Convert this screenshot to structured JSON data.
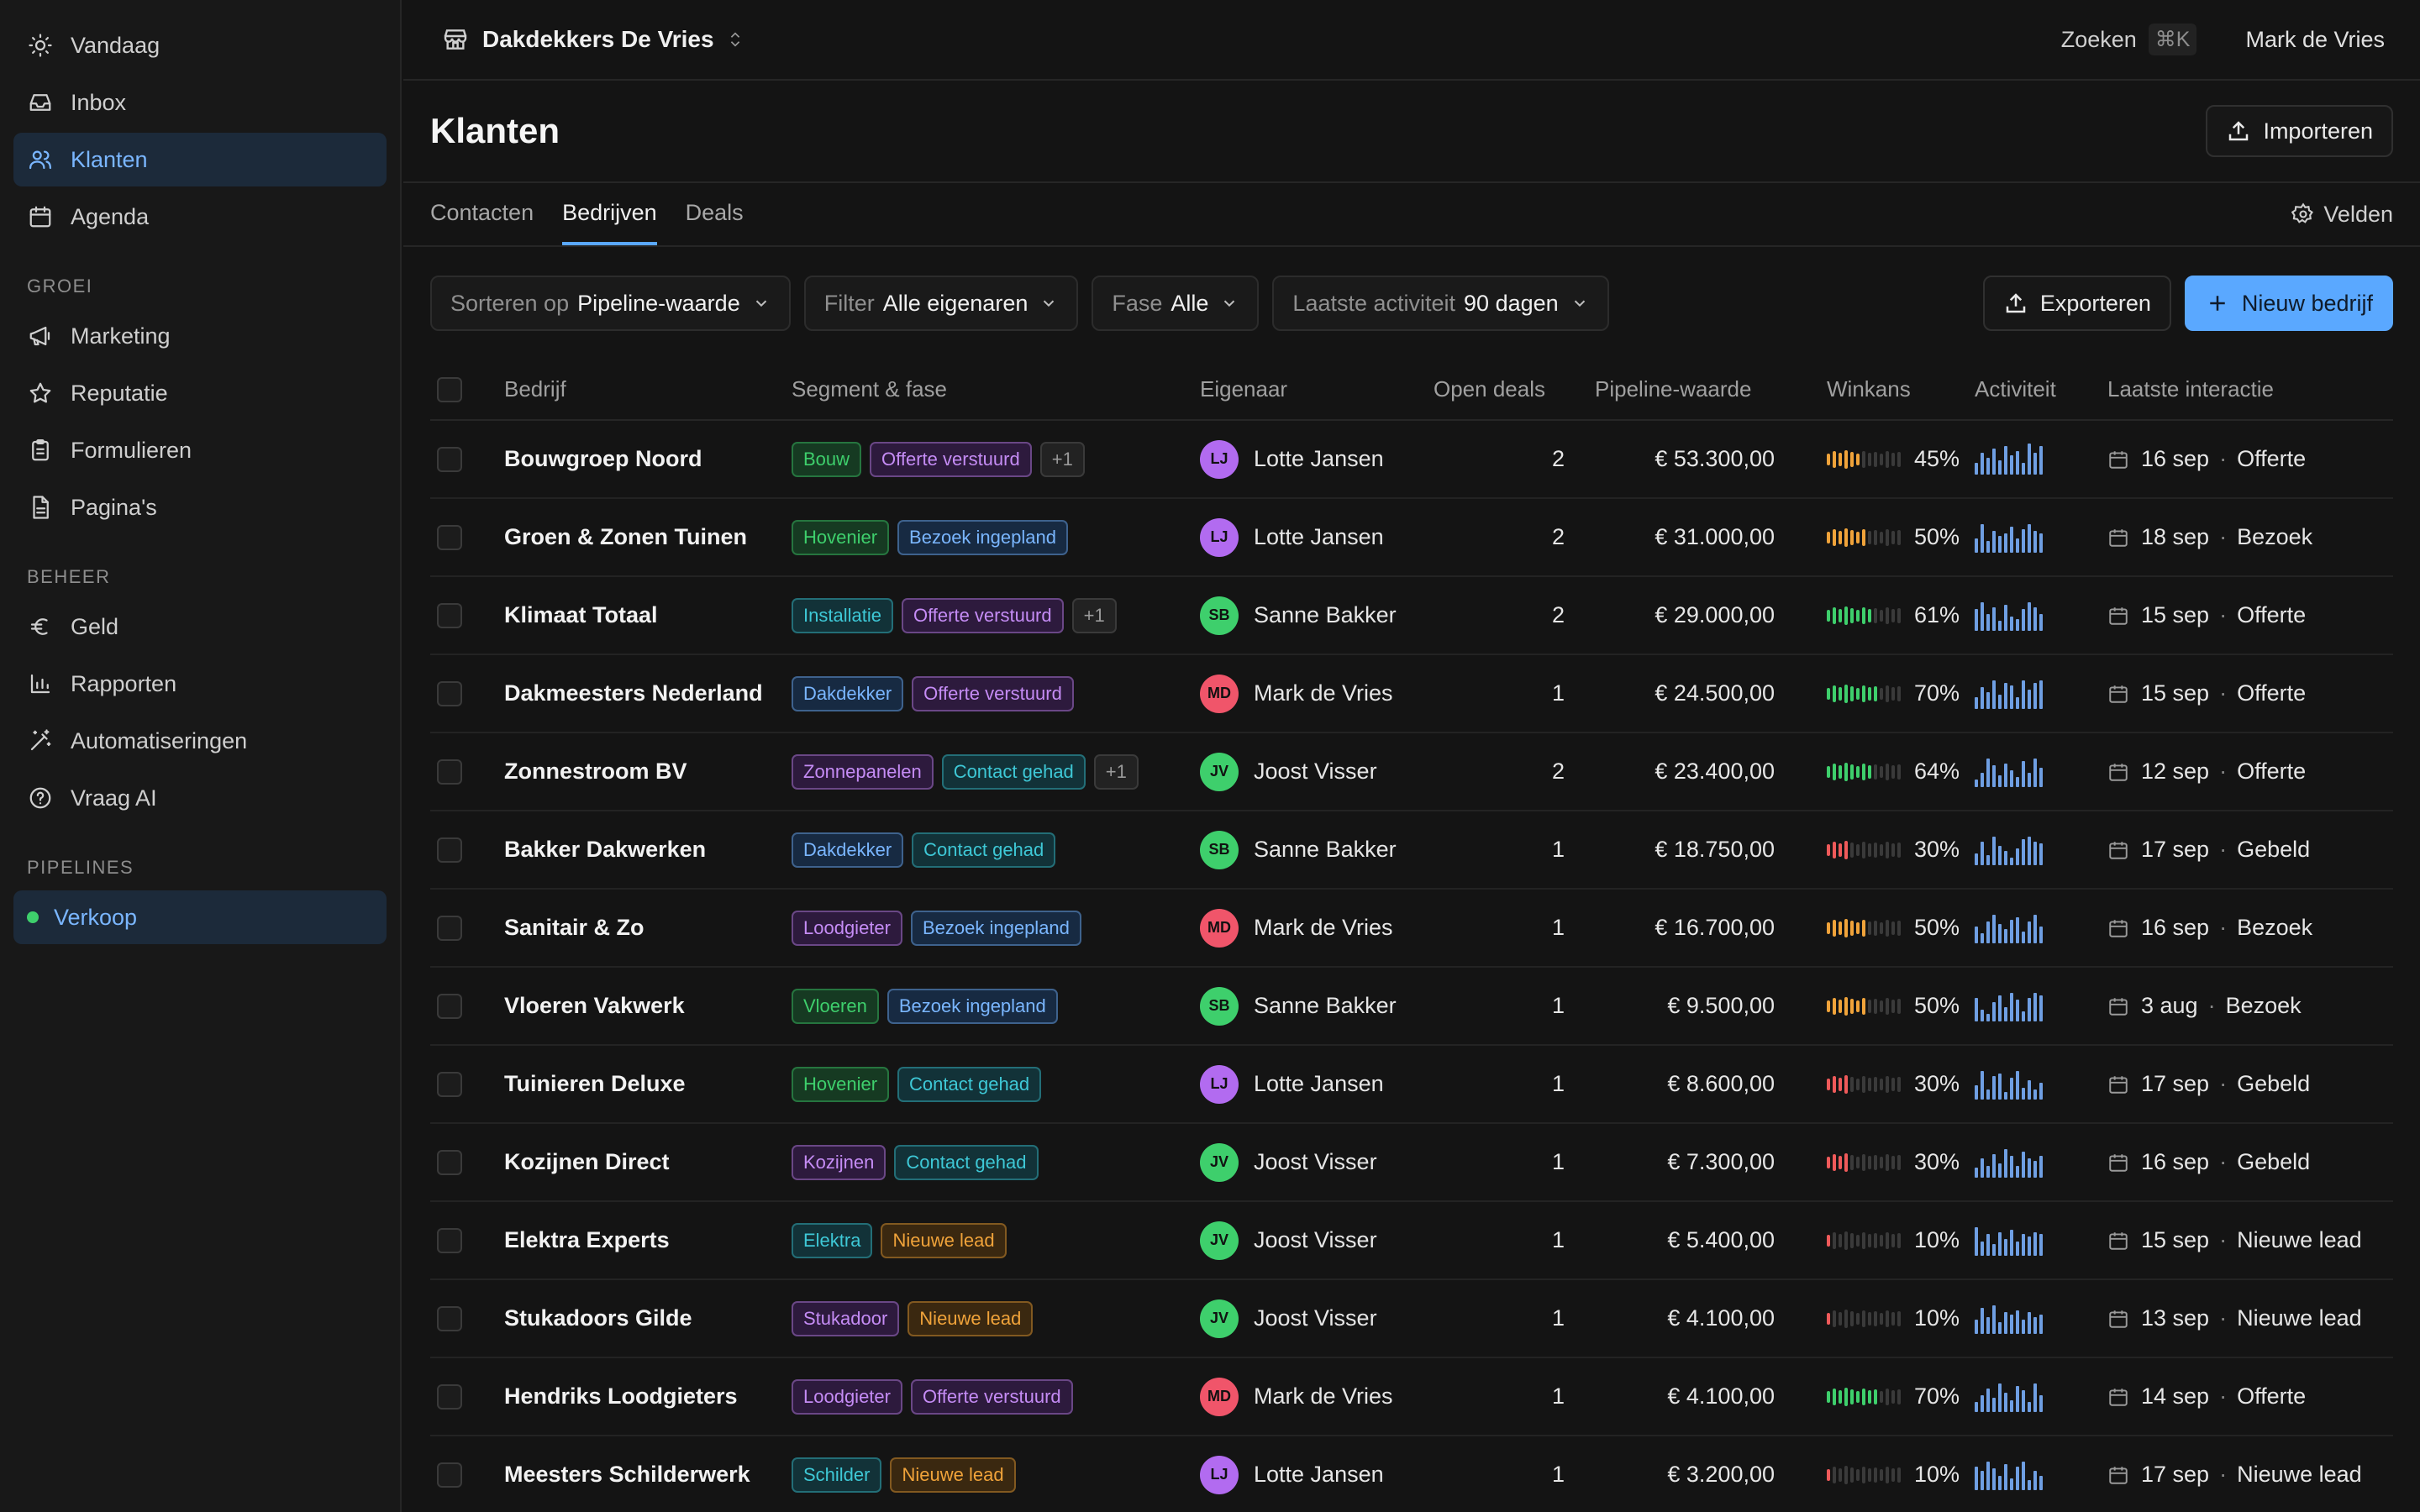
{
  "sidebar": {
    "top_items": [
      {
        "label": "Vandaag",
        "icon": "sun-icon"
      },
      {
        "label": "Inbox",
        "icon": "inbox-icon"
      },
      {
        "label": "Klanten",
        "icon": "users-icon",
        "active": true
      },
      {
        "label": "Agenda",
        "icon": "calendar-icon"
      }
    ],
    "groei_label": "GROEI",
    "groei_items": [
      {
        "label": "Marketing",
        "icon": "megaphone-icon"
      },
      {
        "label": "Reputatie",
        "icon": "star-icon"
      },
      {
        "label": "Formulieren",
        "icon": "clipboard-icon"
      },
      {
        "label": "Pagina's",
        "icon": "file-icon"
      }
    ],
    "beheer_label": "BEHEER",
    "beheer_items": [
      {
        "label": "Geld",
        "icon": "euro-icon"
      },
      {
        "label": "Rapporten",
        "icon": "bar-chart-icon"
      },
      {
        "label": "Automatiseringen",
        "icon": "magic-wand-icon"
      },
      {
        "label": "Vraag AI",
        "icon": "help-circle-icon"
      }
    ],
    "pipelines_label": "PIPELINES",
    "pipelines_items": [
      {
        "label": "Verkoop",
        "icon": "status-dot-icon",
        "active": true
      }
    ]
  },
  "topbar": {
    "workspace": "Dakdekkers De Vries",
    "search_label": "Zoeken",
    "search_shortcut": "⌘K",
    "user_name": "Mark de Vries"
  },
  "header": {
    "title": "Klanten",
    "import_label": "Importeren"
  },
  "tabs": {
    "items": [
      "Contacten",
      "Bedrijven",
      "Deals"
    ],
    "active": "Bedrijven",
    "fields_label": "Velden"
  },
  "toolbar": {
    "sort_label": "Sorteren op",
    "sort_value": "Pipeline-waarde",
    "filter_label": "Filter",
    "filter_value": "Alle eigenaren",
    "phase_label": "Fase",
    "phase_value": "Alle",
    "activity_label": "Laatste activiteit",
    "activity_value": "90 dagen",
    "export_label": "Exporteren",
    "new_label": "Nieuw bedrijf"
  },
  "table": {
    "columns": [
      "Bedrijf",
      "Segment & fase",
      "Eigenaar",
      "Open deals",
      "Pipeline-waarde",
      "Winkans",
      "Activiteit",
      "Laatste interactie"
    ],
    "rows": [
      {
        "company": "Bouwgroep Noord",
        "segment": "Bouw",
        "phase": "Offerte verstuurd",
        "extra": "+1",
        "owner": "Lotte Jansen",
        "initials": "LJ",
        "deals": "2",
        "value": "€ 53.300,00",
        "winkans": 45,
        "winkans_label": "45%",
        "activity": [
          5,
          9,
          7,
          11,
          6,
          12,
          8,
          10,
          5,
          13,
          9,
          12
        ],
        "date": "16 sep",
        "interaction": "Offerte"
      },
      {
        "company": "Groen & Zonen Tuinen",
        "segment": "Hovenier",
        "phase": "Bezoek ingepland",
        "extra": "",
        "owner": "Lotte Jansen",
        "initials": "LJ",
        "deals": "2",
        "value": "€ 31.000,00",
        "winkans": 50,
        "winkans_label": "50%",
        "activity": [
          6,
          12,
          5,
          9,
          7,
          8,
          11,
          6,
          10,
          12,
          9,
          8
        ],
        "date": "18 sep",
        "interaction": "Bezoek"
      },
      {
        "company": "Klimaat Totaal",
        "segment": "Installatie",
        "phase": "Offerte verstuurd",
        "extra": "+1",
        "owner": "Sanne Bakker",
        "initials": "SB",
        "deals": "2",
        "value": "€ 29.000,00",
        "winkans": 61,
        "winkans_label": "61%",
        "activity": [
          9,
          12,
          7,
          10,
          4,
          11,
          6,
          5,
          9,
          12,
          10,
          7
        ],
        "date": "15 sep",
        "interaction": "Offerte"
      },
      {
        "company": "Dakmeesters Nederland",
        "segment": "Dakdekker",
        "phase": "Offerte verstuurd",
        "extra": "",
        "owner": "Mark de Vries",
        "initials": "MD",
        "deals": "1",
        "value": "€ 24.500,00",
        "winkans": 70,
        "winkans_label": "70%",
        "activity": [
          5,
          9,
          7,
          12,
          6,
          11,
          10,
          5,
          12,
          8,
          11,
          12
        ],
        "date": "15 sep",
        "interaction": "Offerte"
      },
      {
        "company": "Zonnestroom BV",
        "segment": "Zonnepanelen",
        "phase": "Contact gehad",
        "extra": "+1",
        "owner": "Joost Visser",
        "initials": "JV",
        "deals": "2",
        "value": "€ 23.400,00",
        "winkans": 64,
        "winkans_label": "64%",
        "activity": [
          3,
          6,
          12,
          9,
          5,
          10,
          7,
          4,
          11,
          6,
          12,
          8
        ],
        "date": "12 sep",
        "interaction": "Offerte"
      },
      {
        "company": "Bakker Dakwerken",
        "segment": "Dakdekker",
        "phase": "Contact gehad",
        "extra": "",
        "owner": "Sanne Bakker",
        "initials": "SB",
        "deals": "1",
        "value": "€ 18.750,00",
        "winkans": 30,
        "winkans_label": "30%",
        "activity": [
          5,
          10,
          4,
          12,
          8,
          6,
          3,
          7,
          11,
          12,
          10,
          9
        ],
        "date": "17 sep",
        "interaction": "Gebeld"
      },
      {
        "company": "Sanitair & Zo",
        "segment": "Loodgieter",
        "phase": "Bezoek ingepland",
        "extra": "",
        "owner": "Mark de Vries",
        "initials": "MD",
        "deals": "1",
        "value": "€ 16.700,00",
        "winkans": 50,
        "winkans_label": "50%",
        "activity": [
          7,
          4,
          9,
          12,
          8,
          6,
          10,
          11,
          5,
          9,
          12,
          7
        ],
        "date": "16 sep",
        "interaction": "Bezoek"
      },
      {
        "company": "Vloeren Vakwerk",
        "segment": "Vloeren",
        "phase": "Bezoek ingepland",
        "extra": "",
        "owner": "Sanne Bakker",
        "initials": "SB",
        "deals": "1",
        "value": "€ 9.500,00",
        "winkans": 50,
        "winkans_label": "50%",
        "activity": [
          10,
          5,
          3,
          8,
          11,
          6,
          12,
          9,
          4,
          10,
          12,
          11
        ],
        "date": "3 aug",
        "interaction": "Bezoek"
      },
      {
        "company": "Tuinieren Deluxe",
        "segment": "Hovenier",
        "phase": "Contact gehad",
        "extra": "",
        "owner": "Lotte Jansen",
        "initials": "LJ",
        "deals": "1",
        "value": "€ 8.600,00",
        "winkans": 30,
        "winkans_label": "30%",
        "activity": [
          6,
          12,
          4,
          10,
          11,
          3,
          9,
          12,
          5,
          8,
          4,
          7
        ],
        "date": "17 sep",
        "interaction": "Gebeld"
      },
      {
        "company": "Kozijnen Direct",
        "segment": "Kozijnen",
        "phase": "Contact gehad",
        "extra": "",
        "owner": "Joost Visser",
        "initials": "JV",
        "deals": "1",
        "value": "€ 7.300,00",
        "winkans": 30,
        "winkans_label": "30%",
        "activity": [
          4,
          8,
          5,
          10,
          6,
          12,
          9,
          5,
          11,
          8,
          7,
          9
        ],
        "date": "16 sep",
        "interaction": "Gebeld"
      },
      {
        "company": "Elektra Experts",
        "segment": "Elektra",
        "phase": "Nieuwe lead",
        "extra": "",
        "owner": "Joost Visser",
        "initials": "JV",
        "deals": "1",
        "value": "€ 5.400,00",
        "winkans": 10,
        "winkans_label": "10%",
        "activity": [
          12,
          6,
          9,
          5,
          10,
          7,
          11,
          6,
          9,
          8,
          10,
          9
        ],
        "date": "15 sep",
        "interaction": "Nieuwe lead"
      },
      {
        "company": "Stukadoors Gilde",
        "segment": "Stukadoor",
        "phase": "Nieuwe lead",
        "extra": "",
        "owner": "Joost Visser",
        "initials": "JV",
        "deals": "1",
        "value": "€ 4.100,00",
        "winkans": 10,
        "winkans_label": "10%",
        "activity": [
          6,
          11,
          7,
          12,
          5,
          9,
          8,
          10,
          6,
          9,
          7,
          8
        ],
        "date": "13 sep",
        "interaction": "Nieuwe lead"
      },
      {
        "company": "Hendriks Loodgieters",
        "segment": "Loodgieter",
        "phase": "Offerte verstuurd",
        "extra": "",
        "owner": "Mark de Vries",
        "initials": "MD",
        "deals": "1",
        "value": "€ 4.100,00",
        "winkans": 70,
        "winkans_label": "70%",
        "activity": [
          4,
          7,
          10,
          6,
          12,
          8,
          5,
          11,
          9,
          4,
          12,
          7
        ],
        "date": "14 sep",
        "interaction": "Offerte"
      },
      {
        "company": "Meesters Schilderwerk",
        "segment": "Schilder",
        "phase": "Nieuwe lead",
        "extra": "",
        "owner": "Lotte Jansen",
        "initials": "LJ",
        "deals": "1",
        "value": "€ 3.200,00",
        "winkans": 10,
        "winkans_label": "10%",
        "activity": [
          10,
          8,
          12,
          9,
          6,
          11,
          5,
          10,
          12,
          4,
          8,
          6
        ],
        "date": "17 sep",
        "interaction": "Nieuwe lead"
      }
    ]
  },
  "colors": {
    "accent": "#5aa8ff",
    "owner_LJ": "#b26bf0",
    "owner_SB": "#3ecf6c",
    "owner_MD": "#f0556a",
    "owner_JV": "#3ecf6c",
    "winkans_low": "#ef5a5a",
    "winkans_mid": "#f0a33a",
    "winkans_high": "#3ecf6c"
  }
}
